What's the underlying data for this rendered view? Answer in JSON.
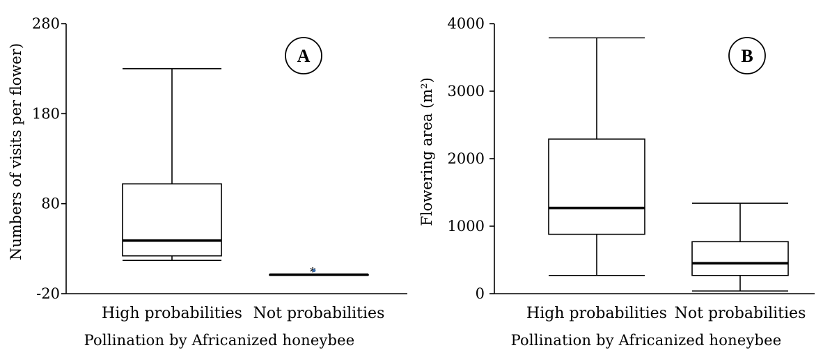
{
  "chart_data": [
    {
      "type": "boxplot",
      "badge": "A",
      "ylabel": "Numbers of visits per flower)",
      "xlabel": "Pollination by Africanized honeybee",
      "ylim": [
        -20,
        280
      ],
      "yticks": [
        -20,
        80,
        180,
        280
      ],
      "categories": [
        "High probabilities",
        "Not probabilities"
      ],
      "boxes": [
        {
          "category": "High probabilities",
          "min": 17,
          "q1": 22,
          "median": 39,
          "q3": 102,
          "max": 230
        },
        {
          "category": "Not probabilities",
          "min": 1,
          "q1": 1,
          "median": 1,
          "q3": 1,
          "max": 1,
          "outliers": [
            5
          ]
        }
      ]
    },
    {
      "type": "boxplot",
      "badge": "B",
      "ylabel": "Flowering area (m²)",
      "xlabel": "Pollination by Africanized honeybee",
      "ylim": [
        0,
        4000
      ],
      "yticks": [
        0,
        1000,
        2000,
        3000,
        4000
      ],
      "categories": [
        "High probabilities",
        "Not probabilities"
      ],
      "boxes": [
        {
          "category": "High probabilities",
          "min": 270,
          "q1": 880,
          "median": 1270,
          "q3": 2290,
          "max": 3790
        },
        {
          "category": "Not probabilities",
          "min": 40,
          "q1": 270,
          "median": 450,
          "q3": 770,
          "max": 1340
        }
      ]
    }
  ]
}
